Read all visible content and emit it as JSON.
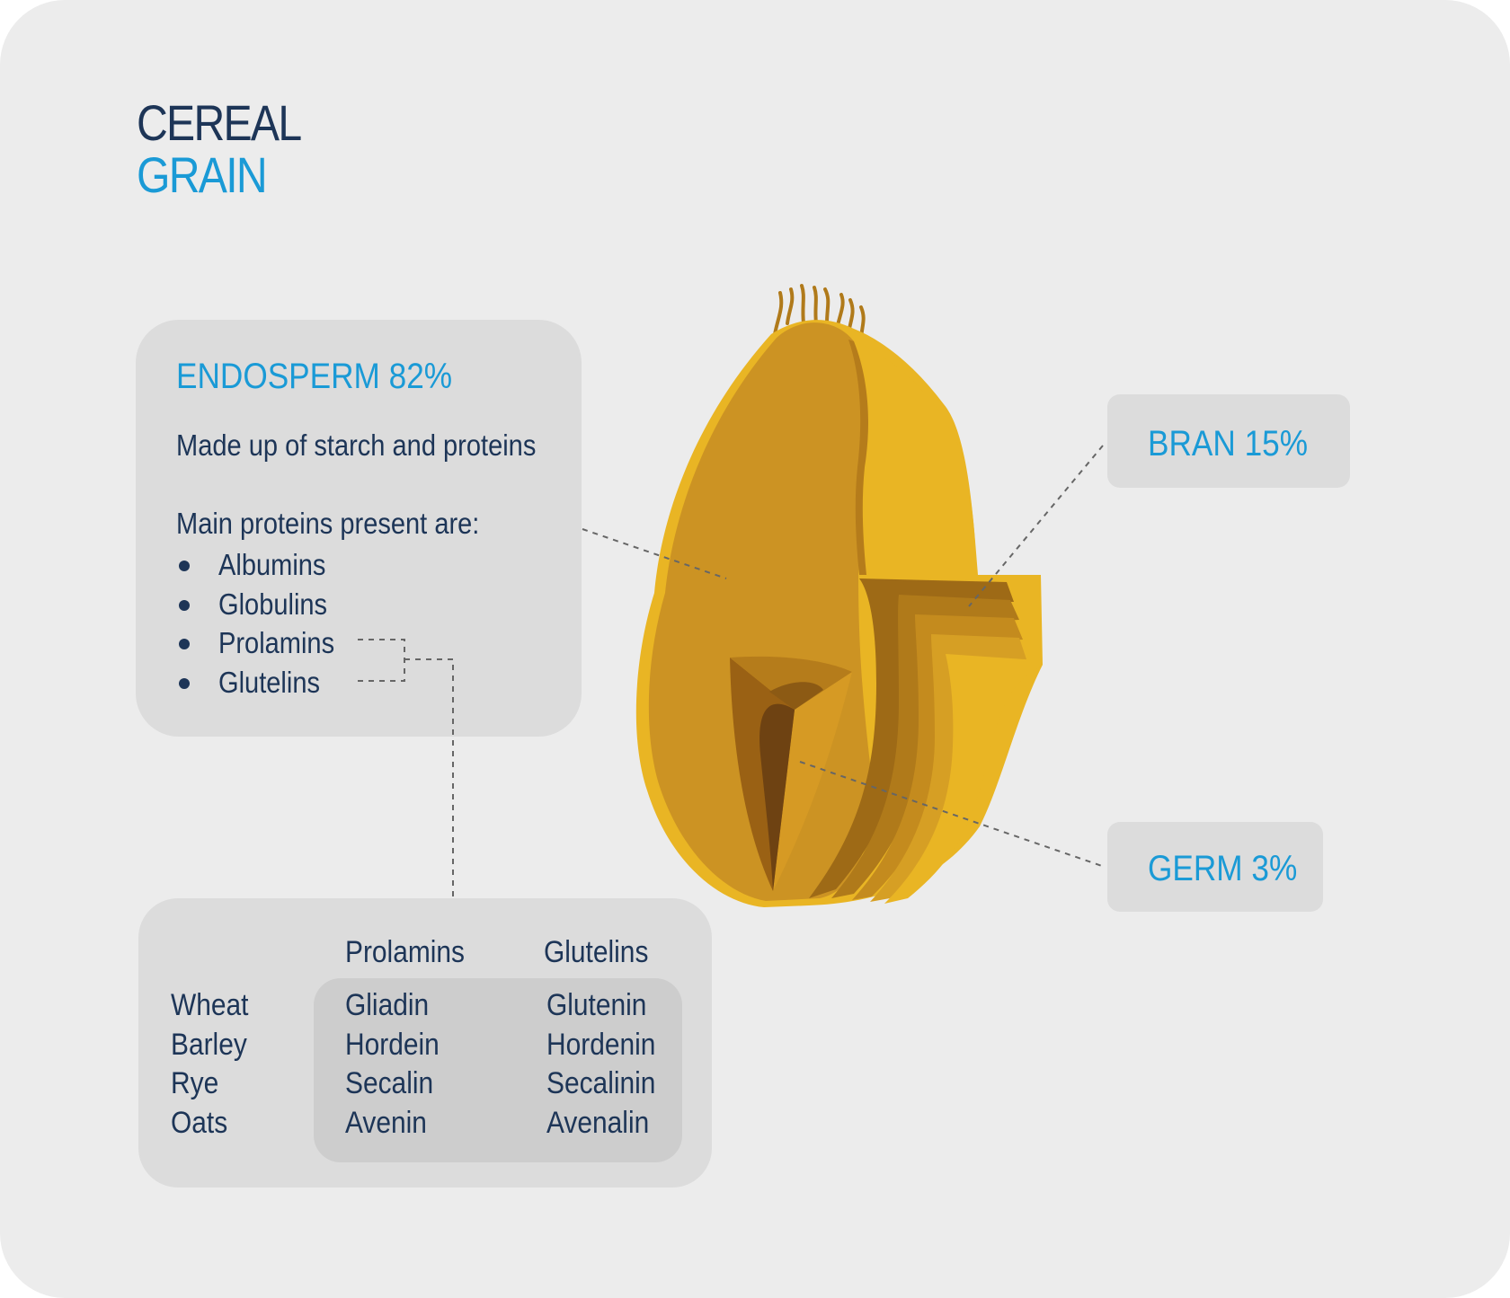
{
  "title": {
    "line1": "CEREAL",
    "line2": "GRAIN"
  },
  "endosperm": {
    "heading": "ENDOSPERM 82%",
    "description": "Made up of starch and proteins",
    "proteins_intro": "Main proteins present are:",
    "proteins": [
      "Albumins",
      "Globulins",
      "Prolamins",
      "Glutelins"
    ]
  },
  "bran": {
    "label": "BRAN 15%"
  },
  "germ": {
    "label": "GERM 3%"
  },
  "protein_table": {
    "headers": [
      "",
      "Prolamins",
      "Glutelins"
    ],
    "rows": [
      {
        "cereal": "Wheat",
        "prolamin": "Gliadin",
        "glutelin": "Glutenin"
      },
      {
        "cereal": "Barley",
        "prolamin": "Hordein",
        "glutelin": "Hordenin"
      },
      {
        "cereal": "Rye",
        "prolamin": "Secalin",
        "glutelin": "Secalinin"
      },
      {
        "cereal": "Oats",
        "prolamin": "Avenin",
        "glutelin": "Avenalin"
      }
    ]
  },
  "colors": {
    "navy": "#1d3557",
    "accent_blue": "#1a9ad6",
    "grain_body": "#cc9323",
    "grain_bright": "#e9b524",
    "grain_dark": "#996113"
  }
}
